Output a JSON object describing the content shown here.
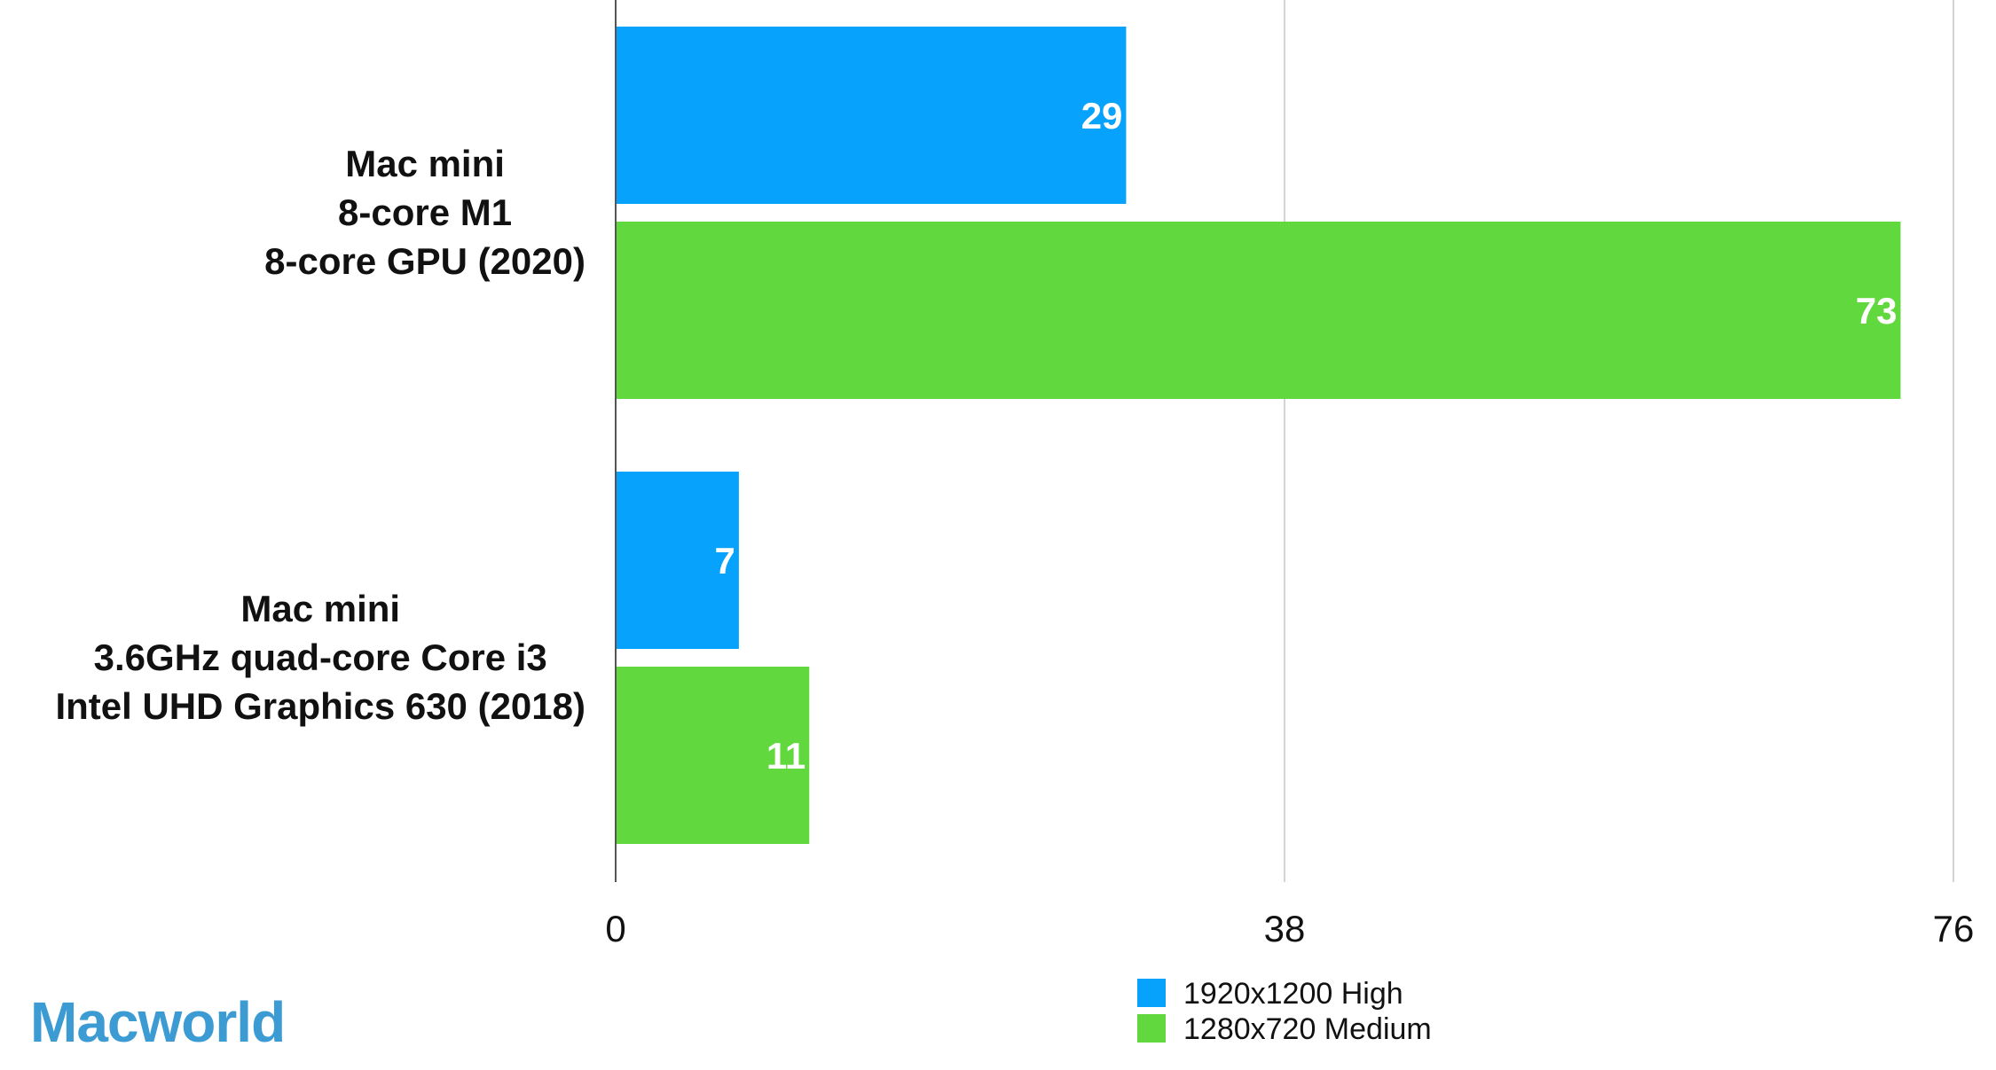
{
  "brand": {
    "name": "Macworld",
    "color": "#3d9bd3"
  },
  "chart_data": {
    "type": "bar",
    "orientation": "horizontal",
    "categories": [
      [
        "Mac mini",
        "8-core M1",
        "8-core GPU (2020)"
      ],
      [
        "Mac mini",
        "3.6GHz quad-core Core i3",
        "Intel UHD Graphics 630 (2018)"
      ]
    ],
    "series": [
      {
        "name": "1920x1200 High",
        "color": "#06a2fb",
        "values": [
          29,
          7
        ]
      },
      {
        "name": "1280x720 Medium",
        "color": "#61d93e",
        "values": [
          73,
          11
        ]
      }
    ],
    "xlim": [
      0,
      76
    ],
    "xticks": [
      0,
      38,
      76
    ],
    "grid": true,
    "legend_position": "bottom"
  }
}
